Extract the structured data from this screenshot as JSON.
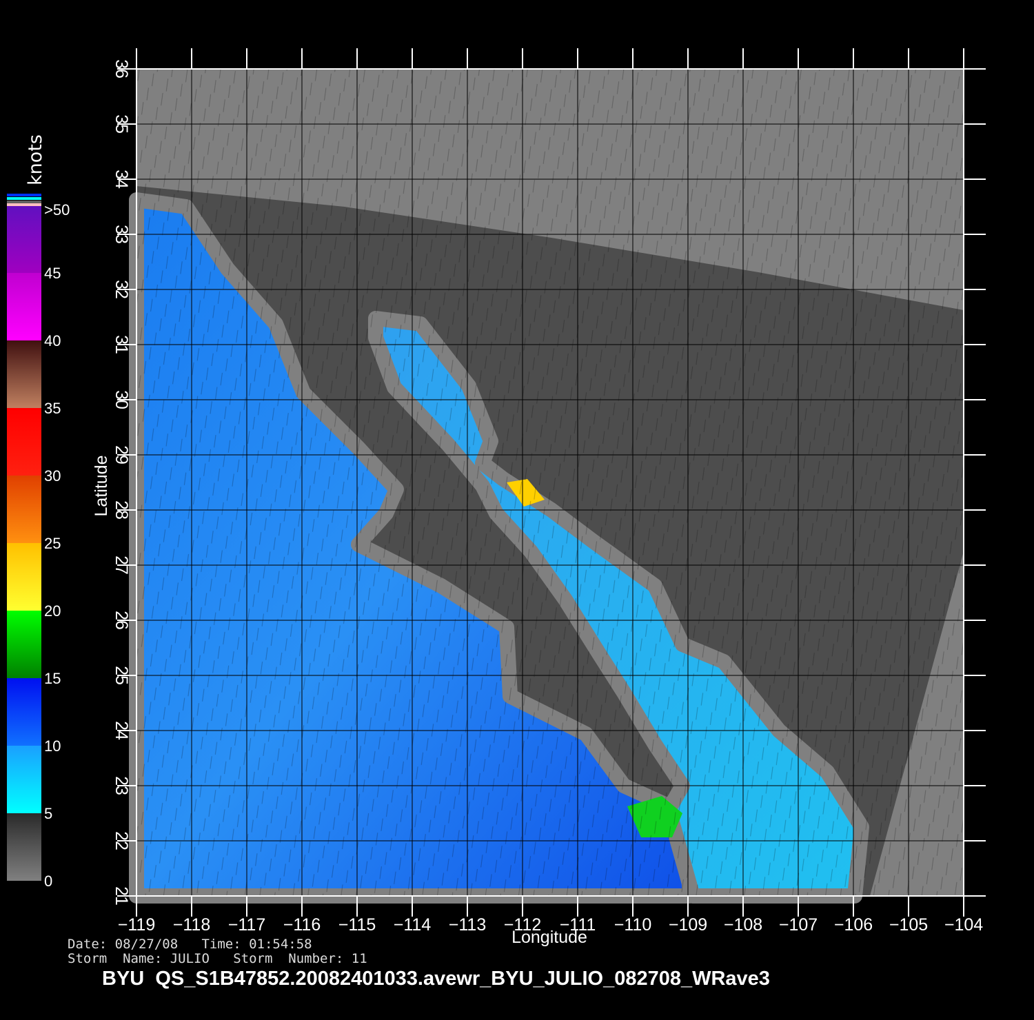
{
  "chart_data": {
    "type": "heatmap",
    "description_field": "wind speed",
    "xlabel": "Longitude",
    "ylabel": "Latitude",
    "xlim": [
      -119,
      -104
    ],
    "ylim": [
      21,
      36
    ],
    "x_ticks": [
      "−119",
      "−118",
      "−117",
      "−116",
      "−115",
      "−114",
      "−113",
      "−112",
      "−111",
      "−110",
      "−109",
      "−108",
      "−107",
      "−106",
      "−105",
      "−104"
    ],
    "y_ticks": [
      "21",
      "22",
      "23",
      "24",
      "25",
      "26",
      "27",
      "28",
      "29",
      "30",
      "31",
      "32",
      "33",
      "34",
      "35",
      "36"
    ],
    "grid": true,
    "colorbar": {
      "unit": "knots",
      "range": [
        0,
        50
      ],
      "labels": [
        "0",
        "5",
        "10",
        "15",
        "20",
        "25",
        "30",
        "35",
        "40",
        "45",
        ">50"
      ],
      "colors": [
        "#808080",
        "#00ffff",
        "#0060ff",
        "#00ff00",
        "#ffff00",
        "#ff8000",
        "#ff0000",
        "#a06040",
        "#ff00ff",
        "#6000c0"
      ]
    }
  },
  "info": {
    "date_time": "Date: 08/27/08   Time: 01:54:58",
    "storm": "Storm  Name: JULIO   Storm  Number: 11",
    "title": "BYU  QS_S1B47852.20082401033.avewr_BYU_JULIO_082708_WRave3"
  }
}
